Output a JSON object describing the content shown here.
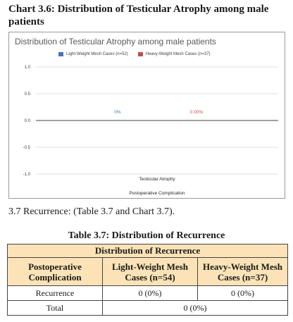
{
  "chart_heading": "Chart 3.6: Distribution of Testicular Atrophy among male patients",
  "chart_data": {
    "type": "bar",
    "title": "Distribution of Testicular Atrophy among male patients",
    "categories": [
      "Testicular Atrophy"
    ],
    "xlabel": "Postoperative Complication",
    "ylabel": "",
    "ylim": [
      -1.0,
      1.0
    ],
    "yticks": [
      "1.0",
      "0.5",
      "0.0",
      "-0.5",
      "-1.0"
    ],
    "ytick_values": [
      1.0,
      0.5,
      0.0,
      -0.5,
      -1.0
    ],
    "legend_position": "top",
    "grid": true,
    "series": [
      {
        "name": "Light-Weight Mesh Cases (n=52)",
        "values": [
          0
        ],
        "label": "0%",
        "color": "#4472c4"
      },
      {
        "name": "Heavy-Weight Mesh Cases (n=37)",
        "values": [
          0
        ],
        "label": "0.00%",
        "color": "#c0504d"
      }
    ]
  },
  "body_text": "3.7 Recurrence: (Table 3.7 and Chart 3.7).",
  "table": {
    "caption": "Table 3.7: Distribution of Recurrence",
    "header_main": "Distribution of Recurrence",
    "col1": "Postoperative Complication",
    "col2": "Light-Weight Mesh Cases (n=54)",
    "col3": "Heavy-Weight Mesh Cases (n=37)",
    "rows": [
      {
        "label": "Recurrence",
        "lw": "0 (0%)",
        "hw": "0 (0%)"
      }
    ],
    "total_label": "Total",
    "total_value": "0 (0%)"
  },
  "colors": {
    "header_fill": "#fbe3b7",
    "light_series": "#4472c4",
    "heavy_series": "#c0504d"
  }
}
